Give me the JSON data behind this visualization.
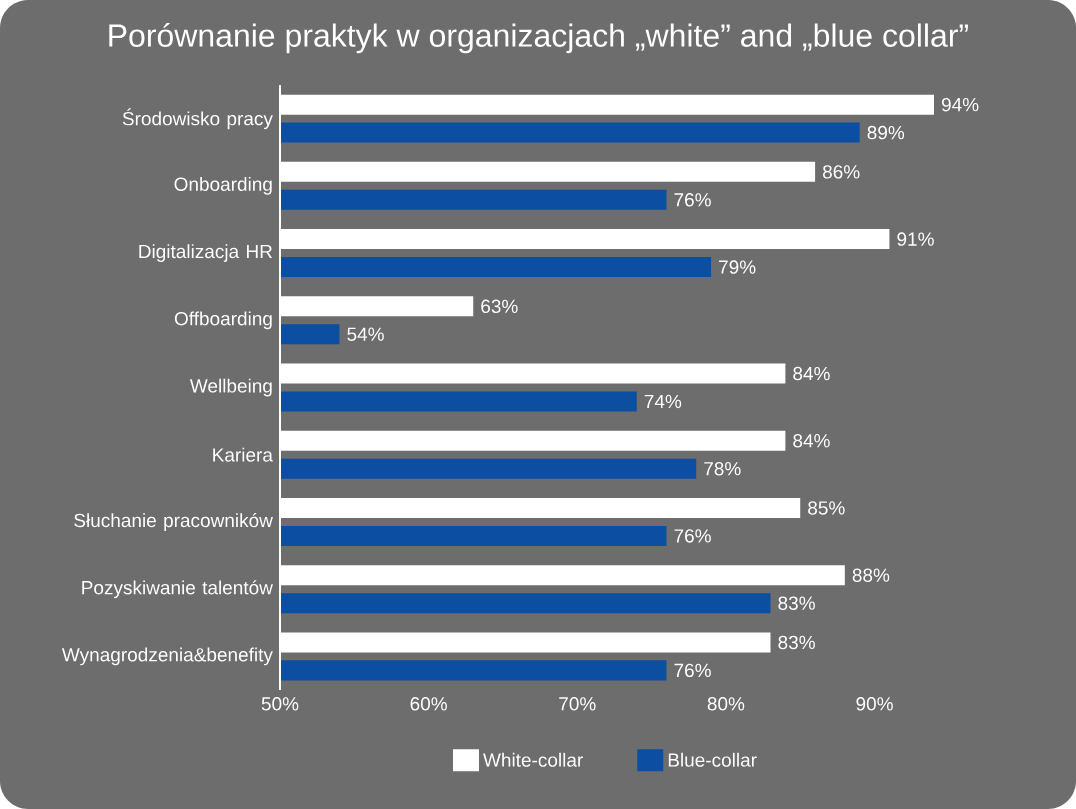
{
  "chart_data": {
    "type": "bar",
    "orientation": "horizontal",
    "title": "Porównanie praktyk w organizacjach „white” and „blue collar”",
    "categories": [
      "Środowisko pracy",
      "Onboarding",
      "Digitalizacja HR",
      "Offboarding",
      "Wellbeing",
      "Kariera",
      "Słuchanie pracowników",
      "Pozyskiwanie talentów",
      "Wynagrodzenia&benefity"
    ],
    "series": [
      {
        "name": "White-collar",
        "color": "#ffffff",
        "values": [
          94,
          86,
          91,
          63,
          84,
          84,
          85,
          88,
          83
        ],
        "value_labels": [
          "94%",
          "86%",
          "91%",
          "63%",
          "84%",
          "84%",
          "85%",
          "88%",
          "83%"
        ]
      },
      {
        "name": "Blue-collar",
        "color": "#0b4ea2",
        "values": [
          89,
          76,
          79,
          54,
          74,
          78,
          76,
          83,
          76
        ],
        "value_labels": [
          "89%",
          "76%",
          "79%",
          "54%",
          "74%",
          "78%",
          "76%",
          "83%",
          "76%"
        ]
      }
    ],
    "xlim": [
      50,
      94
    ],
    "xticks": [
      {
        "value": 50,
        "label": "50%"
      },
      {
        "value": 60,
        "label": "60%"
      },
      {
        "value": 70,
        "label": "70%"
      },
      {
        "value": 80,
        "label": "80%"
      },
      {
        "value": 90,
        "label": "90%"
      }
    ],
    "grid": false,
    "legend": "bottom"
  }
}
